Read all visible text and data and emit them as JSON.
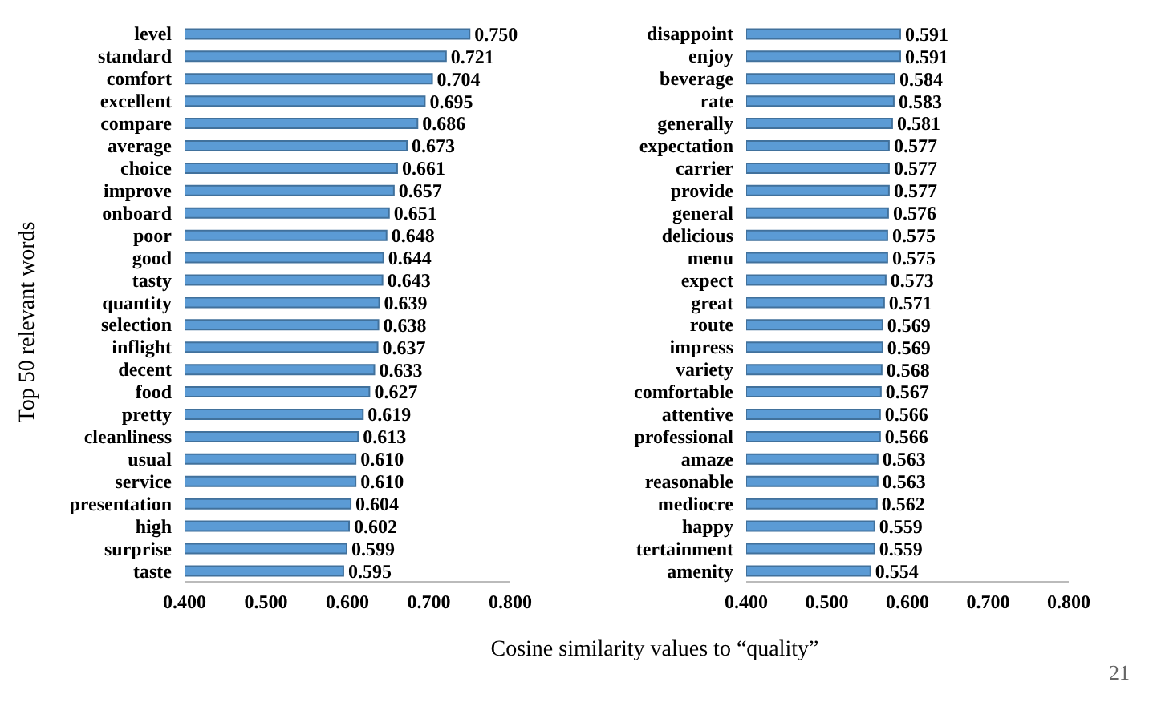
{
  "chart_data": [
    {
      "type": "bar",
      "orientation": "horizontal",
      "ylabel": "Top 50 relevant words",
      "xlabel": "Cosine similarity values to “quality”",
      "color": "#5b9bd5",
      "categories": [
        "level",
        "standard",
        "comfort",
        "excellent",
        "compare",
        "average",
        "choice",
        "improve",
        "onboard",
        "poor",
        "good",
        "tasty",
        "quantity",
        "selection",
        "inflight",
        "decent",
        "food",
        "pretty",
        "cleanliness",
        "usual",
        "service",
        "presentation",
        "high",
        "surprise",
        "taste"
      ],
      "values": [
        0.75,
        0.721,
        0.704,
        0.695,
        0.686,
        0.673,
        0.661,
        0.657,
        0.651,
        0.648,
        0.644,
        0.643,
        0.639,
        0.638,
        0.637,
        0.633,
        0.627,
        0.619,
        0.613,
        0.61,
        0.61,
        0.604,
        0.602,
        0.599,
        0.595
      ],
      "value_labels": [
        "0.750",
        "0.721",
        "0.704",
        "0.695",
        "0.686",
        "0.673",
        "0.661",
        "0.657",
        "0.651",
        "0.648",
        "0.644",
        "0.643",
        "0.639",
        "0.638",
        "0.637",
        "0.633",
        "0.627",
        "0.619",
        "0.613",
        "0.610",
        "0.610",
        "0.604",
        "0.602",
        "0.599",
        "0.595"
      ],
      "xlim": [
        0.4,
        0.8
      ],
      "xticks": [
        {
          "value": 0.4,
          "label": "0.400"
        },
        {
          "value": 0.5,
          "label": "0.500"
        },
        {
          "value": 0.6,
          "label": "0.600"
        },
        {
          "value": 0.7,
          "label": "0.700"
        },
        {
          "value": 0.8,
          "label": "0.800"
        }
      ]
    },
    {
      "type": "bar",
      "orientation": "horizontal",
      "color": "#5b9bd5",
      "annotations": [
        "21"
      ],
      "categories": [
        "disappoint",
        "enjoy",
        "beverage",
        "rate",
        "generally",
        "expectation",
        "carrier",
        "provide",
        "general",
        "delicious",
        "menu",
        "expect",
        "great",
        "route",
        "impress",
        "variety",
        "comfortable",
        "attentive",
        "professional",
        "amaze",
        "reasonable",
        "mediocre",
        "happy",
        "tertainment",
        "amenity"
      ],
      "values": [
        0.591,
        0.591,
        0.584,
        0.583,
        0.581,
        0.577,
        0.577,
        0.577,
        0.576,
        0.575,
        0.575,
        0.573,
        0.571,
        0.569,
        0.569,
        0.568,
        0.567,
        0.566,
        0.566,
        0.563,
        0.563,
        0.562,
        0.559,
        0.559,
        0.554
      ],
      "value_labels": [
        "0.591",
        "0.591",
        "0.584",
        "0.583",
        "0.581",
        "0.577",
        "0.577",
        "0.577",
        "0.576",
        "0.575",
        "0.575",
        "0.573",
        "0.571",
        "0.569",
        "0.569",
        "0.568",
        "0.567",
        "0.566",
        "0.566",
        "0.563",
        "0.563",
        "0.562",
        "0.559",
        "0.559",
        "0.554"
      ],
      "xlim": [
        0.4,
        0.8
      ],
      "xticks": [
        {
          "value": 0.4,
          "label": "0.400"
        },
        {
          "value": 0.5,
          "label": "0.500"
        },
        {
          "value": 0.6,
          "label": "0.600"
        },
        {
          "value": 0.7,
          "label": "0.700"
        },
        {
          "value": 0.8,
          "label": "0.800"
        }
      ]
    }
  ]
}
